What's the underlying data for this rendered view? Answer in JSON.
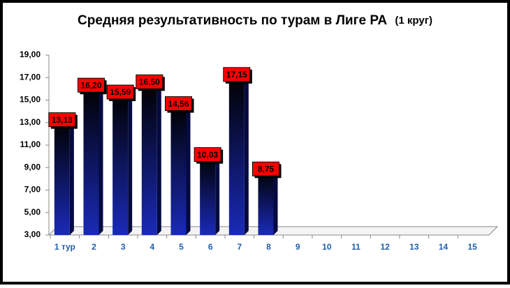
{
  "chart_data": {
    "type": "bar",
    "title": "Средняя результативность по турам в Лиге РА",
    "subtitle": "(1 круг)",
    "categories": [
      "1 тур",
      "2",
      "3",
      "4",
      "5",
      "6",
      "7",
      "8",
      "9",
      "10",
      "11",
      "12",
      "13",
      "14",
      "15"
    ],
    "values": [
      13.13,
      16.2,
      15.59,
      16.5,
      14.56,
      10.03,
      17.15,
      8.75,
      null,
      null,
      null,
      null,
      null,
      null,
      null
    ],
    "value_labels": [
      "13,13",
      "16,20",
      "15,59",
      "16,50",
      "14,56",
      "10,03",
      "17,15",
      "8,75",
      null,
      null,
      null,
      null,
      null,
      null,
      null
    ],
    "ylim": [
      3,
      19
    ],
    "yticks": [
      {
        "value": 3,
        "label": "3,00"
      },
      {
        "value": 5,
        "label": "5,00"
      },
      {
        "value": 7,
        "label": "7,00"
      },
      {
        "value": 9,
        "label": "9,00"
      },
      {
        "value": 11,
        "label": "11,00"
      },
      {
        "value": 13,
        "label": "13,00"
      },
      {
        "value": 15,
        "label": "15,00"
      },
      {
        "value": 17,
        "label": "17,00"
      },
      {
        "value": 19,
        "label": "19,00"
      }
    ],
    "color": "#0a1a8c",
    "label_color": "#ff0000"
  }
}
